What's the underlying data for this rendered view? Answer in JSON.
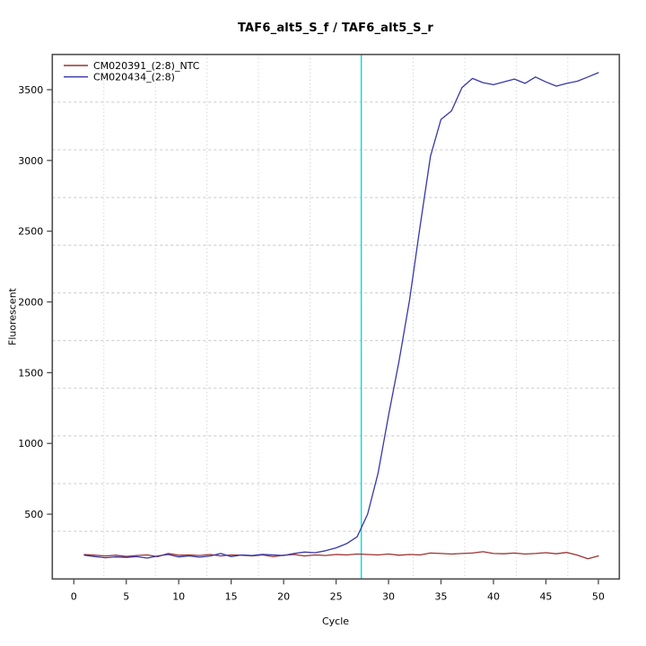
{
  "window": {
    "background": "#ffffff"
  },
  "chart_data": {
    "type": "line",
    "title": "TAF6_alt5_S_f / TAF6_alt5_S_r",
    "xlabel": "Cycle",
    "ylabel": "Fluorescent",
    "xlim": [
      -2.05,
      52.0
    ],
    "ylim": [
      42,
      3749
    ],
    "x_ticks": [
      0,
      5,
      10,
      15,
      20,
      25,
      30,
      35,
      40,
      45,
      50
    ],
    "y_ticks": [
      500,
      1000,
      1500,
      2000,
      2500,
      3000,
      3500
    ],
    "grid": {
      "on": true,
      "nx": 11,
      "ny": 11,
      "color": "#c8c8c8"
    },
    "threshold_line": {
      "x": 27.4,
      "color": "#00dede"
    },
    "frame_color": "#4d4d4d",
    "x": [
      1,
      2,
      3,
      4,
      5,
      6,
      7,
      8,
      9,
      10,
      11,
      12,
      13,
      14,
      15,
      16,
      17,
      18,
      19,
      20,
      21,
      22,
      23,
      24,
      25,
      26,
      27,
      28,
      29,
      30,
      31,
      32,
      33,
      34,
      35,
      36,
      37,
      38,
      39,
      40,
      41,
      42,
      43,
      44,
      45,
      46,
      47,
      48,
      49,
      50
    ],
    "series": [
      {
        "name": "CM020391_(2:8)_NTC",
        "color": "#9c3232",
        "values": [
          215,
          210,
          205,
          210,
          202,
          208,
          212,
          200,
          222,
          210,
          212,
          208,
          215,
          205,
          212,
          210,
          205,
          212,
          200,
          210,
          215,
          205,
          212,
          208,
          215,
          212,
          218,
          215,
          212,
          218,
          210,
          215,
          212,
          225,
          222,
          218,
          222,
          225,
          235,
          222,
          220,
          225,
          218,
          222,
          228,
          220,
          230,
          210,
          185,
          205
        ]
      },
      {
        "name": "CM020434_(2:8)",
        "color": "#3737a8",
        "values": [
          210,
          200,
          192,
          198,
          195,
          200,
          190,
          205,
          215,
          198,
          205,
          196,
          205,
          222,
          200,
          212,
          208,
          216,
          212,
          208,
          222,
          232,
          228,
          242,
          262,
          292,
          340,
          500,
          790,
          1200,
          1580,
          2010,
          2530,
          3030,
          3290,
          3350,
          3515,
          3580,
          3550,
          3535,
          3555,
          3575,
          3545,
          3590,
          3555,
          3525,
          3545,
          3560,
          3590,
          3620
        ]
      }
    ],
    "legend": {
      "position": "top-left",
      "entries": [
        "CM020391_(2:8)_NTC",
        "CM020434_(2:8)"
      ]
    }
  }
}
